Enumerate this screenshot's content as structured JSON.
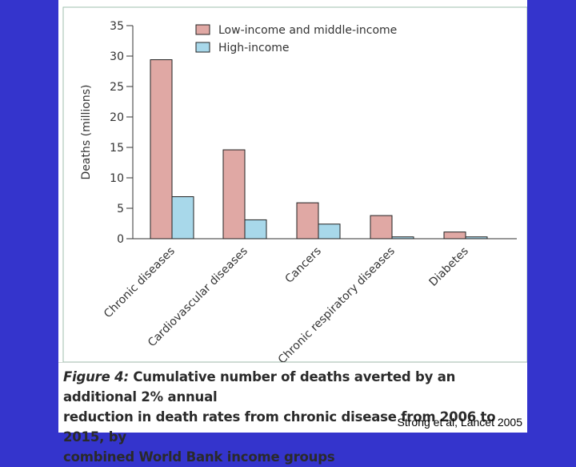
{
  "chart_data": {
    "type": "bar",
    "title": "",
    "ylabel": "Deaths (millions)",
    "xlabel": "",
    "ylim": [
      0,
      35
    ],
    "yticks": [
      0,
      5,
      10,
      15,
      20,
      25,
      30,
      35
    ],
    "categories": [
      "Chronic diseases",
      "Cardiovascular diseases",
      "Cancers",
      "Chronic respiratory diseases",
      "Diabetes"
    ],
    "series": [
      {
        "name": "Low-income and middle-income",
        "color": "#e0a8a4",
        "values": [
          29.4,
          14.6,
          5.9,
          3.8,
          1.1
        ]
      },
      {
        "name": "High-income",
        "color": "#a8d8ea",
        "values": [
          6.9,
          3.1,
          2.4,
          0.3,
          0.3
        ]
      }
    ],
    "legend_position": "top-right",
    "grid": false
  },
  "caption": {
    "figure_label": "Figure 4:",
    "text_line1": " Cumulative number of deaths averted by an additional 2% annual",
    "text_line2": "reduction in death rates from chronic disease from 2006 to 2015, by",
    "text_line3": "combined World Bank income groups"
  },
  "credit": "Strong et al, Lancet 2005"
}
